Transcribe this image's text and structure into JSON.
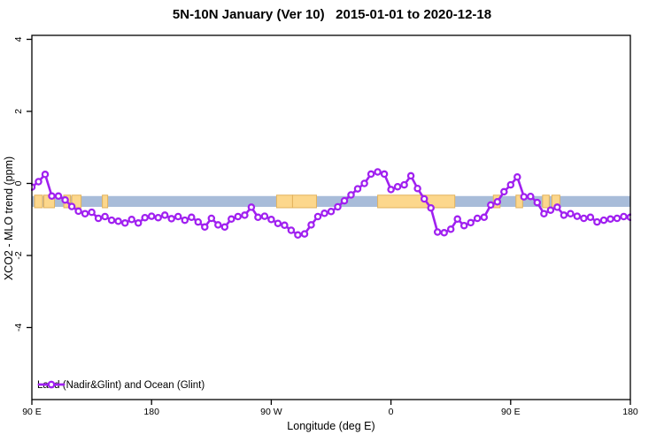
{
  "header": {
    "title": "5N-10N January (Ver 10)   2015-01-01 to 2020-12-18"
  },
  "axes": {
    "x_label": "Longitude (deg E)",
    "y_label": "XCO2 - MLO trend (ppm)"
  },
  "legend": {
    "series_label": "Land (Nadir&Glint) and Ocean (Glint)",
    "marker": "open-circle-on-line"
  },
  "colors": {
    "series_purple": "#A020F0",
    "marker_fill": "#FFFFFF",
    "ocean_band_blue": "#A8BCD9",
    "land_patch_fill": "#FCD78C",
    "land_patch_edge": "#E2B25C",
    "axis_black": "#000000",
    "background": "#FFFFFF"
  },
  "chart_data": {
    "type": "line",
    "title": "5N-10N January (Ver 10)   2015-01-01 to 2020-12-18",
    "xlabel": "Longitude (deg E)",
    "ylabel": "XCO2 - MLO trend (ppm)",
    "xlim_continued_deg": [
      90,
      540
    ],
    "ylim": [
      -6,
      4.1
    ],
    "grid": false,
    "legend_position": "bottom-left-inside",
    "x_ticks": [
      {
        "lon": 90,
        "label": "90 E"
      },
      {
        "lon": 180,
        "label": "180"
      },
      {
        "lon": 270,
        "label": "90 W"
      },
      {
        "lon": 360,
        "label": "0"
      },
      {
        "lon": 450,
        "label": "90 E"
      },
      {
        "lon": 540,
        "label": "180"
      }
    ],
    "y_ticks": [
      {
        "value": -4,
        "label": "-4"
      },
      {
        "value": -2,
        "label": "-2"
      },
      {
        "value": 0,
        "label": "0"
      },
      {
        "value": 2,
        "label": "2"
      },
      {
        "value": 4,
        "label": "4"
      }
    ],
    "series": [
      {
        "name": "Land (Nadir&Glint) and Ocean (Glint)",
        "marker": "open-circle",
        "lon_deg_east_continued": [
          90,
          95,
          100,
          105,
          110,
          115,
          120,
          125,
          130,
          135,
          140,
          145,
          150,
          155,
          160,
          165,
          170,
          175,
          180,
          185,
          190,
          195,
          200,
          205,
          210,
          215,
          220,
          225,
          230,
          235,
          240,
          245,
          250,
          255,
          260,
          265,
          270,
          275,
          280,
          285,
          290,
          295,
          300,
          305,
          310,
          315,
          320,
          325,
          330,
          335,
          340,
          345,
          350,
          355,
          360,
          365,
          370,
          375,
          380,
          385,
          390,
          395,
          400,
          405,
          410,
          415,
          420,
          425,
          430,
          435,
          440,
          445,
          450,
          455,
          460,
          465,
          470,
          475,
          480,
          485,
          490,
          495,
          500,
          505,
          510,
          515,
          520,
          525,
          530,
          535,
          540
        ],
        "values_ppm": [
          -0.1,
          0.05,
          0.25,
          -0.35,
          -0.35,
          -0.46,
          -0.64,
          -0.77,
          -0.84,
          -0.8,
          -0.97,
          -0.92,
          -1.02,
          -1.05,
          -1.1,
          -1.0,
          -1.1,
          -0.95,
          -0.91,
          -0.95,
          -0.88,
          -0.98,
          -0.92,
          -1.02,
          -0.94,
          -1.07,
          -1.21,
          -0.97,
          -1.15,
          -1.21,
          -0.99,
          -0.92,
          -0.88,
          -0.66,
          -0.94,
          -0.91,
          -1.0,
          -1.11,
          -1.16,
          -1.3,
          -1.43,
          -1.4,
          -1.15,
          -0.92,
          -0.83,
          -0.78,
          -0.65,
          -0.48,
          -0.32,
          -0.15,
          0.0,
          0.26,
          0.32,
          0.26,
          -0.17,
          -0.09,
          -0.04,
          0.21,
          -0.14,
          -0.43,
          -0.68,
          -1.35,
          -1.37,
          -1.27,
          -0.99,
          -1.17,
          -1.09,
          -0.97,
          -0.94,
          -0.6,
          -0.51,
          -0.23,
          -0.04,
          0.18,
          -0.37,
          -0.36,
          -0.53,
          -0.84,
          -0.74,
          -0.66,
          -0.88,
          -0.84,
          -0.91,
          -0.97,
          -0.94,
          -1.07,
          -1.02,
          -0.99,
          -0.97,
          -0.92,
          -0.94
        ]
      }
    ],
    "map_strip": {
      "description": "world map strip of the 5N-10N latitude band drawn across the plot",
      "band_top_ppm": -0.35,
      "band_bottom_ppm": -0.65,
      "land_segments_continued_deg": [
        {
          "from": 92,
          "to": 98
        },
        {
          "from": 99,
          "to": 107
        },
        {
          "from": 114,
          "to": 119
        },
        {
          "from": 120,
          "to": 127
        },
        {
          "from": 143,
          "to": 147
        },
        {
          "from": 274,
          "to": 286
        },
        {
          "from": 286,
          "to": 304
        },
        {
          "from": 350,
          "to": 408
        },
        {
          "from": 437,
          "to": 442
        },
        {
          "from": 454,
          "to": 459
        },
        {
          "from": 474,
          "to": 479
        },
        {
          "from": 481,
          "to": 487
        }
      ]
    }
  }
}
